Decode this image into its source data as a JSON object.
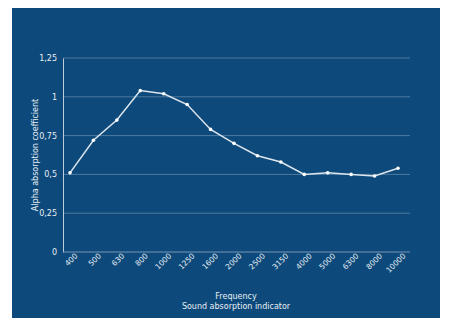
{
  "chart_data": {
    "type": "line",
    "title": "Sound absorption indicator",
    "x_label": "Frequency",
    "y_label": "Alpha absorption coefficient",
    "categories": [
      "400",
      "500",
      "630",
      "800",
      "1000",
      "1250",
      "1600",
      "2000",
      "2500",
      "3150",
      "4000",
      "5000",
      "6300",
      "8000",
      "10000"
    ],
    "values": [
      0.51,
      0.72,
      0.85,
      1.04,
      1.02,
      0.95,
      0.79,
      0.7,
      0.62,
      0.58,
      0.5,
      0.51,
      0.5,
      0.49,
      0.54
    ],
    "color": "#dde6ee",
    "marker": "circle",
    "ylim": [
      0,
      1.25
    ],
    "yticks": [
      0,
      {
        "value": 0.25,
        "label": "0,25"
      },
      {
        "value": 0.5,
        "label": "0,5"
      },
      {
        "value": 0.75,
        "label": "0,75"
      },
      1,
      {
        "value": 1.25,
        "label": "1,25"
      }
    ],
    "grid": true
  }
}
